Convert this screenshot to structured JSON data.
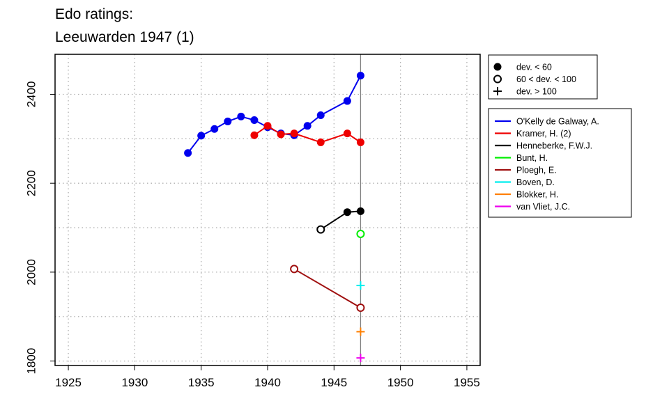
{
  "title": {
    "line1": "Edo ratings:",
    "line2": "Leeuwarden 1947 (1)"
  },
  "chart_data": {
    "type": "line",
    "xlim": [
      1924,
      1956
    ],
    "ylim": [
      1790,
      2490
    ],
    "x_ticks": [
      1925,
      1930,
      1935,
      1940,
      1945,
      1950,
      1955
    ],
    "y_ticks": [
      1800,
      2000,
      2200,
      2400
    ],
    "y_tick_labels": [
      "1800",
      "2000",
      "2200",
      "2400"
    ],
    "grid": true,
    "event_line_x": 1947,
    "symbol_legend": [
      {
        "symbol": "filled",
        "label": "dev. < 60"
      },
      {
        "symbol": "open",
        "label": "60 < dev. < 100"
      },
      {
        "symbol": "plus",
        "label": "dev. > 100"
      }
    ],
    "series": [
      {
        "name": "O'Kelly de Galway, A.",
        "color": "#0000ee",
        "points": [
          {
            "x": 1934,
            "y": 2268,
            "m": "filled"
          },
          {
            "x": 1935,
            "y": 2307,
            "m": "filled"
          },
          {
            "x": 1936,
            "y": 2322,
            "m": "filled"
          },
          {
            "x": 1937,
            "y": 2339,
            "m": "filled"
          },
          {
            "x": 1938,
            "y": 2350,
            "m": "filled"
          },
          {
            "x": 1939,
            "y": 2342,
            "m": "filled"
          },
          {
            "x": 1940,
            "y": 2326,
            "m": "filled"
          },
          {
            "x": 1941,
            "y": 2312,
            "m": "filled"
          },
          {
            "x": 1942,
            "y": 2308,
            "m": "filled"
          },
          {
            "x": 1943,
            "y": 2329,
            "m": "filled"
          },
          {
            "x": 1944,
            "y": 2353,
            "m": "filled"
          },
          {
            "x": 1946,
            "y": 2385,
            "m": "filled"
          },
          {
            "x": 1947,
            "y": 2442,
            "m": "filled"
          }
        ]
      },
      {
        "name": "Kramer, H. (2)",
        "color": "#ee0000",
        "points": [
          {
            "x": 1939,
            "y": 2308,
            "m": "filled"
          },
          {
            "x": 1940,
            "y": 2329,
            "m": "filled"
          },
          {
            "x": 1941,
            "y": 2310,
            "m": "filled"
          },
          {
            "x": 1942,
            "y": 2312,
            "m": "filled"
          },
          {
            "x": 1944,
            "y": 2292,
            "m": "filled"
          },
          {
            "x": 1946,
            "y": 2312,
            "m": "filled"
          },
          {
            "x": 1947,
            "y": 2292,
            "m": "filled"
          }
        ]
      },
      {
        "name": "Henneberke, F.W.J.",
        "color": "#000000",
        "points": [
          {
            "x": 1944,
            "y": 2096,
            "m": "open"
          },
          {
            "x": 1946,
            "y": 2135,
            "m": "filled"
          },
          {
            "x": 1947,
            "y": 2137,
            "m": "filled"
          }
        ]
      },
      {
        "name": "Bunt, H.",
        "color": "#00ee00",
        "points": [
          {
            "x": 1947,
            "y": 2086,
            "m": "open"
          }
        ]
      },
      {
        "name": "Ploegh, E.",
        "color": "#a01010",
        "points": [
          {
            "x": 1942,
            "y": 2007,
            "m": "open"
          },
          {
            "x": 1947,
            "y": 1920,
            "m": "open"
          }
        ]
      },
      {
        "name": "Boven, D.",
        "color": "#00eeee",
        "points": [
          {
            "x": 1947,
            "y": 1970,
            "m": "plus"
          }
        ]
      },
      {
        "name": "Blokker, H.",
        "color": "#ff7f00",
        "points": [
          {
            "x": 1947,
            "y": 1866,
            "m": "plus"
          }
        ]
      },
      {
        "name": "van Vliet, J.C.",
        "color": "#ee00ee",
        "points": [
          {
            "x": 1947,
            "y": 1807,
            "m": "plus"
          }
        ]
      }
    ]
  }
}
